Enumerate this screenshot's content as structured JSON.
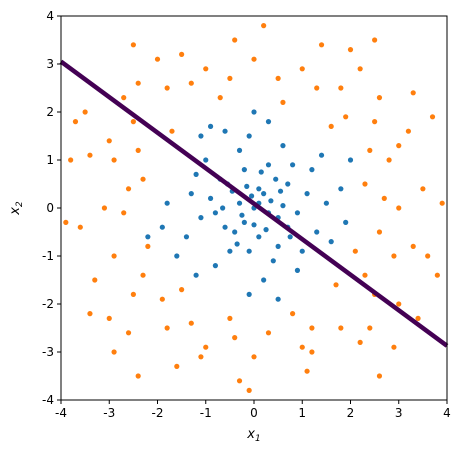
{
  "chart_data": {
    "type": "scatter",
    "title": "",
    "xlabel": "x",
    "xlabel_sub": "1",
    "ylabel": "x",
    "ylabel_sub": "2",
    "xlim": [
      -4,
      4
    ],
    "ylim": [
      -4,
      4
    ],
    "xticks": [
      -4,
      -3,
      -2,
      -1,
      0,
      1,
      2,
      3,
      4
    ],
    "yticks": [
      -4,
      -3,
      -2,
      -1,
      0,
      1,
      2,
      3,
      4
    ],
    "grid": false,
    "legend": "none",
    "series": [
      {
        "color": "#1f77b4",
        "description_of_distribution": "central gaussian cloud",
        "points": [
          [
            0.0,
            0.0
          ],
          [
            0.2,
            0.3
          ],
          [
            -0.3,
            0.1
          ],
          [
            0.5,
            -0.2
          ],
          [
            -0.6,
            -0.4
          ],
          [
            0.1,
            -0.6
          ],
          [
            0.7,
            0.5
          ],
          [
            -0.2,
            0.8
          ],
          [
            0.9,
            -0.1
          ],
          [
            -0.9,
            0.2
          ],
          [
            0.3,
            0.9
          ],
          [
            -0.5,
            -0.9
          ],
          [
            1.1,
            0.3
          ],
          [
            -1.1,
            -0.2
          ],
          [
            0.4,
            -1.1
          ],
          [
            -0.3,
            1.2
          ],
          [
            1.3,
            -0.5
          ],
          [
            -1.2,
            0.7
          ],
          [
            0.6,
            1.3
          ],
          [
            -0.8,
            -1.2
          ],
          [
            1.5,
            0.1
          ],
          [
            -1.4,
            -0.6
          ],
          [
            0.2,
            -1.5
          ],
          [
            -0.1,
            1.5
          ],
          [
            0.8,
            0.9
          ],
          [
            -0.7,
            0.6
          ],
          [
            0.5,
            -0.8
          ],
          [
            -0.4,
            -0.5
          ],
          [
            1.0,
            -0.9
          ],
          [
            -1.0,
            1.0
          ],
          [
            0.1,
            0.4
          ],
          [
            -0.2,
            -0.3
          ],
          [
            0.35,
            0.15
          ],
          [
            -0.15,
            0.45
          ],
          [
            0.6,
            0.05
          ],
          [
            -0.65,
            0.0
          ],
          [
            0.0,
            -0.35
          ],
          [
            0.25,
            -0.45
          ],
          [
            -0.45,
            0.35
          ],
          [
            0.45,
            0.6
          ],
          [
            1.2,
            0.8
          ],
          [
            -1.3,
            0.3
          ],
          [
            0.9,
            -1.3
          ],
          [
            -0.6,
            1.6
          ],
          [
            1.6,
            -0.7
          ],
          [
            -1.6,
            -1.0
          ],
          [
            0.3,
            1.8
          ],
          [
            -0.1,
            -1.8
          ],
          [
            1.8,
            0.4
          ],
          [
            -1.8,
            0.1
          ],
          [
            1.4,
            1.1
          ],
          [
            -1.2,
            -1.4
          ],
          [
            0.7,
            -0.4
          ],
          [
            -0.8,
            -0.1
          ],
          [
            0.15,
            0.75
          ],
          [
            -0.35,
            -0.75
          ],
          [
            1.9,
            -0.3
          ],
          [
            -1.9,
            -0.4
          ],
          [
            0.0,
            2.0
          ],
          [
            0.5,
            -1.9
          ],
          [
            -2.2,
            -0.6
          ],
          [
            -1.1,
            1.5
          ],
          [
            2.0,
            1.0
          ],
          [
            -0.9,
            1.7
          ],
          [
            0.1,
            0.1
          ],
          [
            -0.05,
            0.25
          ],
          [
            0.3,
            -0.1
          ],
          [
            -0.25,
            -0.15
          ],
          [
            0.55,
            0.35
          ],
          [
            -0.55,
            0.5
          ],
          [
            0.75,
            -0.6
          ],
          [
            -0.1,
            -0.9
          ]
        ]
      },
      {
        "color": "#ff7f0e",
        "description_of_distribution": "outer ring, radius about 2 to 4",
        "points": [
          [
            3.0,
            0.0
          ],
          [
            2.8,
            1.0
          ],
          [
            2.5,
            1.8
          ],
          [
            1.8,
            2.5
          ],
          [
            1.0,
            2.9
          ],
          [
            0.0,
            3.1
          ],
          [
            -1.0,
            2.9
          ],
          [
            -1.8,
            2.5
          ],
          [
            -2.5,
            1.8
          ],
          [
            -2.9,
            1.0
          ],
          [
            -3.1,
            0.0
          ],
          [
            -2.9,
            -1.0
          ],
          [
            -2.5,
            -1.8
          ],
          [
            -1.8,
            -2.5
          ],
          [
            -1.0,
            -2.9
          ],
          [
            0.0,
            -3.1
          ],
          [
            1.0,
            -2.9
          ],
          [
            1.8,
            -2.5
          ],
          [
            2.5,
            -1.8
          ],
          [
            2.9,
            -1.0
          ],
          [
            3.5,
            0.4
          ],
          [
            3.3,
            -0.8
          ],
          [
            3.2,
            1.6
          ],
          [
            2.2,
            2.9
          ],
          [
            1.4,
            3.4
          ],
          [
            -0.4,
            3.5
          ],
          [
            -1.5,
            3.2
          ],
          [
            -2.7,
            2.3
          ],
          [
            -3.4,
            1.1
          ],
          [
            -3.6,
            -0.4
          ],
          [
            -3.3,
            -1.5
          ],
          [
            -2.6,
            -2.6
          ],
          [
            -1.6,
            -3.3
          ],
          [
            -0.3,
            -3.6
          ],
          [
            1.1,
            -3.4
          ],
          [
            2.2,
            -2.8
          ],
          [
            3.0,
            -2.0
          ],
          [
            3.6,
            -1.0
          ],
          [
            2.3,
            0.5
          ],
          [
            2.1,
            -0.9
          ],
          [
            1.6,
            1.7
          ],
          [
            0.6,
            2.2
          ],
          [
            -0.7,
            2.3
          ],
          [
            -1.7,
            1.6
          ],
          [
            -2.3,
            0.6
          ],
          [
            -2.2,
            -0.8
          ],
          [
            -1.5,
            -1.7
          ],
          [
            -0.5,
            -2.3
          ],
          [
            0.8,
            -2.2
          ],
          [
            1.7,
            -1.6
          ],
          [
            2.6,
            2.3
          ],
          [
            -2.4,
            2.6
          ],
          [
            -3.0,
            -2.3
          ],
          [
            2.4,
            -2.5
          ],
          [
            3.9,
            0.1
          ],
          [
            -3.9,
            -0.3
          ],
          [
            0.2,
            3.8
          ],
          [
            -0.1,
            -3.8
          ],
          [
            2.7,
            0.2
          ],
          [
            -2.7,
            -0.1
          ],
          [
            3.0,
            1.3
          ],
          [
            -3.0,
            1.4
          ],
          [
            1.2,
            -3.0
          ],
          [
            -1.1,
            -3.1
          ],
          [
            2.0,
            3.3
          ],
          [
            -2.0,
            3.1
          ],
          [
            3.3,
            2.4
          ],
          [
            -3.5,
            2.0
          ],
          [
            3.8,
            -1.4
          ],
          [
            -3.8,
            1.0
          ],
          [
            2.9,
            -2.9
          ],
          [
            -2.9,
            -3.0
          ],
          [
            0.5,
            2.7
          ],
          [
            -0.5,
            2.7
          ],
          [
            2.6,
            -0.5
          ],
          [
            -2.6,
            0.4
          ],
          [
            0.3,
            -2.6
          ],
          [
            -0.4,
            -2.7
          ],
          [
            1.9,
            1.9
          ],
          [
            -1.9,
            -1.9
          ],
          [
            1.3,
            2.5
          ],
          [
            -1.3,
            2.6
          ],
          [
            2.4,
            1.2
          ],
          [
            -2.4,
            1.2
          ],
          [
            2.3,
            -1.4
          ],
          [
            -2.3,
            -1.4
          ],
          [
            1.2,
            -2.5
          ],
          [
            -1.3,
            -2.4
          ],
          [
            3.7,
            1.9
          ],
          [
            -3.7,
            1.8
          ],
          [
            3.4,
            -2.3
          ],
          [
            -3.4,
            -2.2
          ],
          [
            2.5,
            3.5
          ],
          [
            -2.5,
            3.4
          ],
          [
            2.6,
            -3.5
          ],
          [
            -2.4,
            -3.5
          ]
        ]
      }
    ],
    "decision_line": {
      "color": "#440154",
      "x": [
        -4,
        4
      ],
      "y": [
        3.05,
        -2.87
      ]
    }
  }
}
